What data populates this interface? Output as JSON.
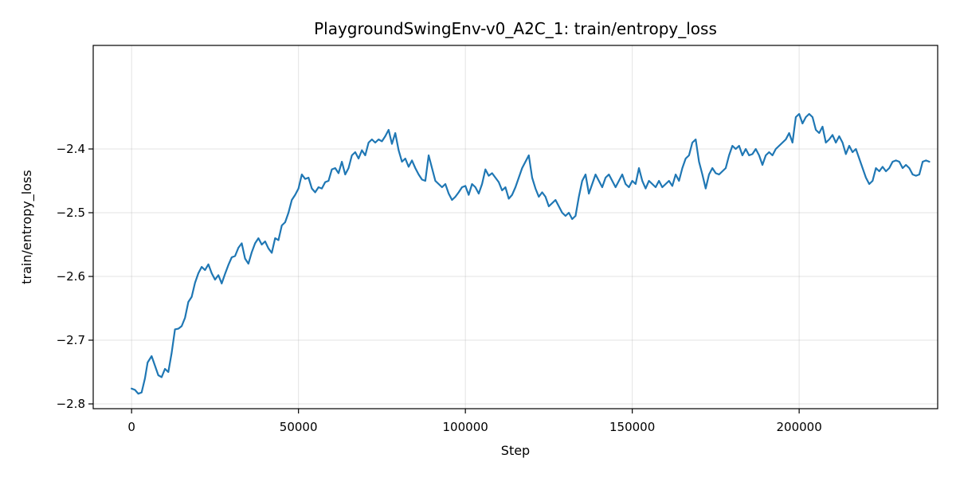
{
  "chart_data": {
    "type": "line",
    "title": "PlaygroundSwingEnv-v0_A2C_1: train/entropy_loss",
    "xlabel": "Step",
    "ylabel": "train/entropy_loss",
    "xlim": [
      -11500,
      241500
    ],
    "ylim": [
      -2.8075,
      -2.2375
    ],
    "xticks": [
      0,
      50000,
      100000,
      150000,
      200000
    ],
    "xtick_labels": [
      "0",
      "50000",
      "100000",
      "150000",
      "200000"
    ],
    "yticks": [
      -2.8,
      -2.7,
      -2.6,
      -2.5,
      -2.4
    ],
    "ytick_labels": [
      "−2.8",
      "−2.7",
      "−2.6",
      "−2.5",
      "−2.4"
    ],
    "grid": true,
    "line_color": "#1f77b4",
    "series": [
      {
        "points": [
          [
            0,
            -2.776
          ],
          [
            1000,
            -2.778
          ],
          [
            2000,
            -2.784
          ],
          [
            3000,
            -2.782
          ],
          [
            4000,
            -2.76
          ],
          [
            4800,
            -2.735
          ],
          [
            6000,
            -2.725
          ],
          [
            7000,
            -2.74
          ],
          [
            8000,
            -2.755
          ],
          [
            9000,
            -2.758
          ],
          [
            10000,
            -2.745
          ],
          [
            11000,
            -2.75
          ],
          [
            12000,
            -2.72
          ],
          [
            13000,
            -2.683
          ],
          [
            14000,
            -2.682
          ],
          [
            15000,
            -2.678
          ],
          [
            16000,
            -2.665
          ],
          [
            17000,
            -2.64
          ],
          [
            18000,
            -2.632
          ],
          [
            19000,
            -2.61
          ],
          [
            20000,
            -2.595
          ],
          [
            21000,
            -2.585
          ],
          [
            22000,
            -2.59
          ],
          [
            23000,
            -2.581
          ],
          [
            24000,
            -2.595
          ],
          [
            25000,
            -2.605
          ],
          [
            26000,
            -2.598
          ],
          [
            27000,
            -2.611
          ],
          [
            28000,
            -2.596
          ],
          [
            29000,
            -2.582
          ],
          [
            30000,
            -2.57
          ],
          [
            31000,
            -2.568
          ],
          [
            32000,
            -2.555
          ],
          [
            33000,
            -2.548
          ],
          [
            34000,
            -2.572
          ],
          [
            35000,
            -2.58
          ],
          [
            36000,
            -2.562
          ],
          [
            37000,
            -2.548
          ],
          [
            38000,
            -2.54
          ],
          [
            39000,
            -2.55
          ],
          [
            40000,
            -2.545
          ],
          [
            41000,
            -2.556
          ],
          [
            42000,
            -2.563
          ],
          [
            43000,
            -2.54
          ],
          [
            44000,
            -2.543
          ],
          [
            45000,
            -2.52
          ],
          [
            46000,
            -2.515
          ],
          [
            47000,
            -2.5
          ],
          [
            48000,
            -2.48
          ],
          [
            49000,
            -2.472
          ],
          [
            50000,
            -2.462
          ],
          [
            51000,
            -2.44
          ],
          [
            52000,
            -2.447
          ],
          [
            53000,
            -2.445
          ],
          [
            54000,
            -2.462
          ],
          [
            55000,
            -2.468
          ],
          [
            56000,
            -2.46
          ],
          [
            57000,
            -2.462
          ],
          [
            58000,
            -2.452
          ],
          [
            59000,
            -2.45
          ],
          [
            60000,
            -2.432
          ],
          [
            61000,
            -2.43
          ],
          [
            62000,
            -2.438
          ],
          [
            63000,
            -2.42
          ],
          [
            64000,
            -2.44
          ],
          [
            65000,
            -2.43
          ],
          [
            66000,
            -2.41
          ],
          [
            67000,
            -2.405
          ],
          [
            68000,
            -2.415
          ],
          [
            69000,
            -2.402
          ],
          [
            70000,
            -2.41
          ],
          [
            71000,
            -2.39
          ],
          [
            72000,
            -2.385
          ],
          [
            73000,
            -2.39
          ],
          [
            74000,
            -2.385
          ],
          [
            75000,
            -2.388
          ],
          [
            76000,
            -2.38
          ],
          [
            77000,
            -2.37
          ],
          [
            78000,
            -2.392
          ],
          [
            79000,
            -2.375
          ],
          [
            80000,
            -2.402
          ],
          [
            81000,
            -2.42
          ],
          [
            82000,
            -2.415
          ],
          [
            83000,
            -2.428
          ],
          [
            84000,
            -2.418
          ],
          [
            85000,
            -2.43
          ],
          [
            86000,
            -2.44
          ],
          [
            87000,
            -2.448
          ],
          [
            88000,
            -2.45
          ],
          [
            89000,
            -2.41
          ],
          [
            90000,
            -2.43
          ],
          [
            91000,
            -2.45
          ],
          [
            92000,
            -2.455
          ],
          [
            93000,
            -2.46
          ],
          [
            94000,
            -2.455
          ],
          [
            95000,
            -2.47
          ],
          [
            96000,
            -2.48
          ],
          [
            97000,
            -2.475
          ],
          [
            98000,
            -2.468
          ],
          [
            99000,
            -2.46
          ],
          [
            100000,
            -2.458
          ],
          [
            101000,
            -2.472
          ],
          [
            102000,
            -2.455
          ],
          [
            103000,
            -2.46
          ],
          [
            104000,
            -2.47
          ],
          [
            105000,
            -2.455
          ],
          [
            106000,
            -2.432
          ],
          [
            107000,
            -2.442
          ],
          [
            108000,
            -2.438
          ],
          [
            109000,
            -2.445
          ],
          [
            110000,
            -2.452
          ],
          [
            111000,
            -2.465
          ],
          [
            112000,
            -2.46
          ],
          [
            113000,
            -2.478
          ],
          [
            114000,
            -2.472
          ],
          [
            115000,
            -2.46
          ],
          [
            116000,
            -2.445
          ],
          [
            117000,
            -2.43
          ],
          [
            118000,
            -2.42
          ],
          [
            119000,
            -2.41
          ],
          [
            120000,
            -2.445
          ],
          [
            121000,
            -2.462
          ],
          [
            122000,
            -2.475
          ],
          [
            123000,
            -2.468
          ],
          [
            124000,
            -2.475
          ],
          [
            125000,
            -2.49
          ],
          [
            126000,
            -2.485
          ],
          [
            127000,
            -2.48
          ],
          [
            128000,
            -2.49
          ],
          [
            129000,
            -2.5
          ],
          [
            130000,
            -2.505
          ],
          [
            131000,
            -2.5
          ],
          [
            132000,
            -2.51
          ],
          [
            133000,
            -2.505
          ],
          [
            134000,
            -2.475
          ],
          [
            135000,
            -2.45
          ],
          [
            136000,
            -2.44
          ],
          [
            137000,
            -2.47
          ],
          [
            138000,
            -2.455
          ],
          [
            139000,
            -2.44
          ],
          [
            140000,
            -2.45
          ],
          [
            141000,
            -2.46
          ],
          [
            142000,
            -2.445
          ],
          [
            143000,
            -2.44
          ],
          [
            144000,
            -2.45
          ],
          [
            145000,
            -2.46
          ],
          [
            146000,
            -2.45
          ],
          [
            147000,
            -2.44
          ],
          [
            148000,
            -2.455
          ],
          [
            149000,
            -2.46
          ],
          [
            150000,
            -2.45
          ],
          [
            151000,
            -2.455
          ],
          [
            152000,
            -2.43
          ],
          [
            153000,
            -2.45
          ],
          [
            154000,
            -2.462
          ],
          [
            155000,
            -2.45
          ],
          [
            156000,
            -2.455
          ],
          [
            157000,
            -2.46
          ],
          [
            158000,
            -2.45
          ],
          [
            159000,
            -2.46
          ],
          [
            160000,
            -2.455
          ],
          [
            161000,
            -2.45
          ],
          [
            162000,
            -2.458
          ],
          [
            163000,
            -2.44
          ],
          [
            164000,
            -2.45
          ],
          [
            165000,
            -2.43
          ],
          [
            166000,
            -2.415
          ],
          [
            167000,
            -2.41
          ],
          [
            168000,
            -2.39
          ],
          [
            169000,
            -2.385
          ],
          [
            170000,
            -2.42
          ],
          [
            171000,
            -2.44
          ],
          [
            172000,
            -2.462
          ],
          [
            173000,
            -2.44
          ],
          [
            174000,
            -2.43
          ],
          [
            175000,
            -2.438
          ],
          [
            176000,
            -2.44
          ],
          [
            177000,
            -2.435
          ],
          [
            178000,
            -2.43
          ],
          [
            179000,
            -2.41
          ],
          [
            180000,
            -2.395
          ],
          [
            181000,
            -2.4
          ],
          [
            182000,
            -2.395
          ],
          [
            183000,
            -2.41
          ],
          [
            184000,
            -2.4
          ],
          [
            185000,
            -2.41
          ],
          [
            186000,
            -2.408
          ],
          [
            187000,
            -2.4
          ],
          [
            188000,
            -2.41
          ],
          [
            189000,
            -2.425
          ],
          [
            190000,
            -2.41
          ],
          [
            191000,
            -2.405
          ],
          [
            192000,
            -2.41
          ],
          [
            193000,
            -2.4
          ],
          [
            194000,
            -2.395
          ],
          [
            195000,
            -2.39
          ],
          [
            196000,
            -2.385
          ],
          [
            197000,
            -2.375
          ],
          [
            198000,
            -2.39
          ],
          [
            199000,
            -2.35
          ],
          [
            200000,
            -2.345
          ],
          [
            201000,
            -2.36
          ],
          [
            202000,
            -2.35
          ],
          [
            203000,
            -2.345
          ],
          [
            204000,
            -2.35
          ],
          [
            205000,
            -2.37
          ],
          [
            206000,
            -2.375
          ],
          [
            207000,
            -2.365
          ],
          [
            208000,
            -2.39
          ],
          [
            209000,
            -2.385
          ],
          [
            210000,
            -2.378
          ],
          [
            211000,
            -2.39
          ],
          [
            212000,
            -2.38
          ],
          [
            213000,
            -2.39
          ],
          [
            214000,
            -2.408
          ],
          [
            215000,
            -2.395
          ],
          [
            216000,
            -2.405
          ],
          [
            217000,
            -2.4
          ],
          [
            218000,
            -2.415
          ],
          [
            219000,
            -2.43
          ],
          [
            220000,
            -2.445
          ],
          [
            221000,
            -2.455
          ],
          [
            222000,
            -2.45
          ],
          [
            223000,
            -2.43
          ],
          [
            224000,
            -2.435
          ],
          [
            225000,
            -2.428
          ],
          [
            226000,
            -2.435
          ],
          [
            227000,
            -2.43
          ],
          [
            228000,
            -2.42
          ],
          [
            229000,
            -2.418
          ],
          [
            230000,
            -2.42
          ],
          [
            231000,
            -2.43
          ],
          [
            232000,
            -2.425
          ],
          [
            233000,
            -2.43
          ],
          [
            234000,
            -2.44
          ],
          [
            235000,
            -2.442
          ],
          [
            236000,
            -2.44
          ],
          [
            237000,
            -2.42
          ],
          [
            238000,
            -2.418
          ],
          [
            239000,
            -2.42
          ]
        ]
      }
    ]
  }
}
